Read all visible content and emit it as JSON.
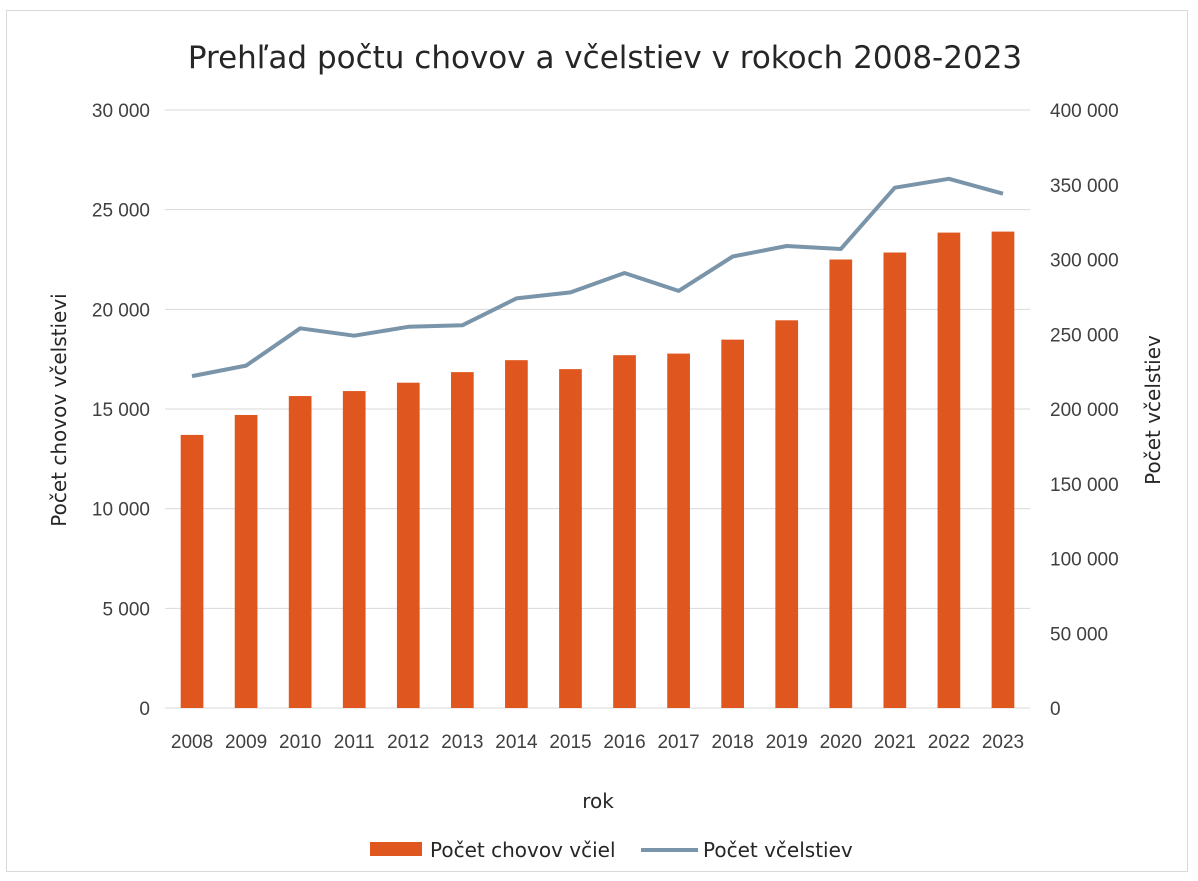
{
  "chart_data": {
    "type": "bar",
    "title": "Prehľad počtu chovov a včelstiev v rokoch 2008-2023",
    "xlabel": "rok",
    "ylabel": "Počet chovov včelstievi",
    "y2label": "Počet včelstiev",
    "categories": [
      "2008",
      "2009",
      "2010",
      "2011",
      "2012",
      "2013",
      "2014",
      "2015",
      "2016",
      "2017",
      "2018",
      "2019",
      "2020",
      "2021",
      "2022",
      "2023"
    ],
    "ylim": [
      0,
      30000
    ],
    "y2lim": [
      0,
      400000
    ],
    "yticks": [
      "0",
      "5 000",
      "10 000",
      "15 000",
      "20 000",
      "25 000",
      "30 000"
    ],
    "y2ticks": [
      "0",
      "50 000",
      "100 000",
      "150 000",
      "200 000",
      "250 000",
      "300 000",
      "350 000",
      "400 000"
    ],
    "grid": true,
    "legend_position": "bottom",
    "series": [
      {
        "name": "Počet chovov včiel",
        "type": "bar",
        "axis": "left",
        "color": "#e0561f",
        "values": [
          13700,
          14700,
          15650,
          15900,
          16320,
          16850,
          17450,
          17000,
          17700,
          17780,
          18480,
          19450,
          22500,
          22850,
          23850,
          23900
        ]
      },
      {
        "name": "Počet včelstiev",
        "type": "line",
        "axis": "right",
        "color": "#7a95aa",
        "values": [
          222000,
          229000,
          254000,
          249000,
          255000,
          256000,
          274000,
          278000,
          291000,
          279000,
          302000,
          309000,
          307000,
          348000,
          354000,
          344000
        ]
      }
    ]
  }
}
